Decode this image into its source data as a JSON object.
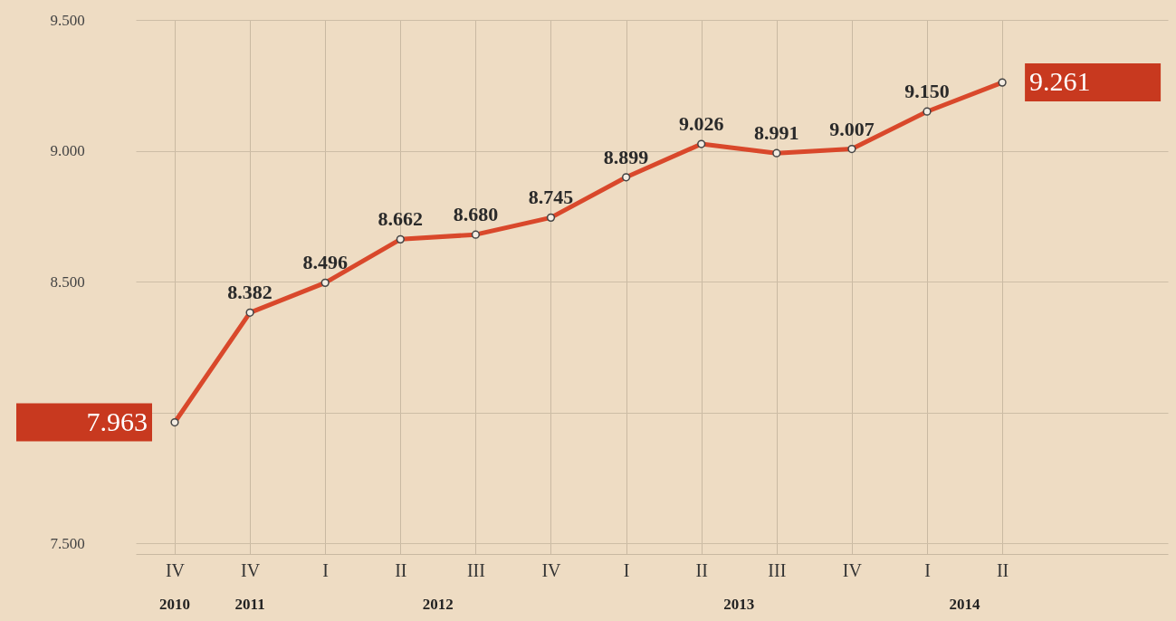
{
  "chart_data": {
    "type": "line",
    "categories": [
      "IV",
      "IV",
      "I",
      "II",
      "III",
      "IV",
      "I",
      "II",
      "III",
      "IV",
      "I",
      "II"
    ],
    "series": [
      {
        "color": "#d9482b",
        "values": [
          7963,
          8382,
          8496,
          8662,
          8680,
          8745,
          8899,
          9026,
          8991,
          9007,
          9150,
          9261
        ],
        "value_labels": [
          "7.963",
          "8.382",
          "8.496",
          "8.662",
          "8.680",
          "8.745",
          "8.899",
          "9.026",
          "8.991",
          "9.007",
          "9.150",
          "9.261"
        ]
      }
    ],
    "ylim": [
      7460,
      9500
    ],
    "yticks": [
      {
        "value": 7500,
        "label": "7.500"
      },
      {
        "value": 8000,
        "label": null
      },
      {
        "value": 8500,
        "label": "8.500"
      },
      {
        "value": 9000,
        "label": "9.000"
      },
      {
        "value": 9500,
        "label": "9.500"
      }
    ],
    "annotations": [
      "2010",
      "2011",
      "2012",
      "2013",
      "2014"
    ],
    "grid": true,
    "marker": "circle",
    "line_style": "solid"
  }
}
